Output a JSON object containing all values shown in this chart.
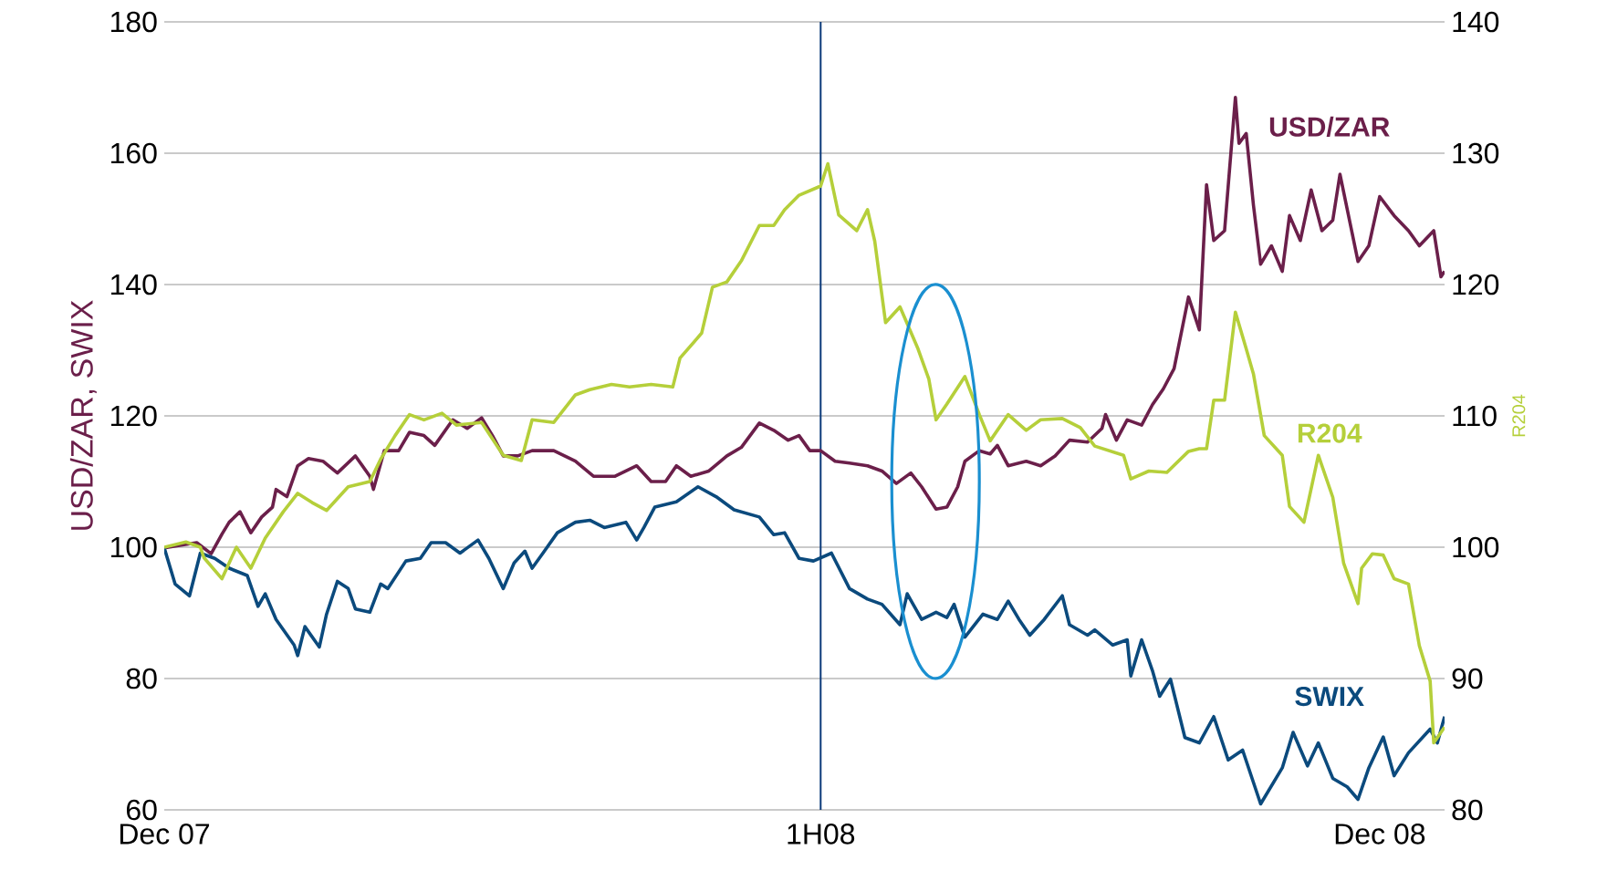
{
  "chart_data": {
    "type": "line",
    "ylabel": "USD/ZAR, SWIX",
    "y2label": "R204",
    "xlim": [
      "2007-12-31",
      "2008-12-20"
    ],
    "xticks": [
      {
        "value": "2007-12-31",
        "label": "Dec 07"
      },
      {
        "value": "2008-06-30",
        "label": "1H08"
      },
      {
        "value": "2008-12-02",
        "label": "Dec 08"
      }
    ],
    "ylim": [
      60,
      180
    ],
    "yticks": [
      60,
      80,
      100,
      120,
      140,
      160,
      180
    ],
    "y2lim": [
      80,
      140
    ],
    "y2ticks": [
      80,
      90,
      100,
      110,
      120,
      130,
      140
    ],
    "grid": "y",
    "ref_lines": [
      {
        "axis": "x",
        "value": "2008-06-30",
        "color": "#0b3a7a"
      }
    ],
    "series": [
      {
        "name": "USD/ZAR",
        "color": "#6b1f4a",
        "x": [
          "2007-12-31",
          "2008-01-09",
          "2008-01-13",
          "2008-01-16",
          "2008-01-18",
          "2008-01-21",
          "2008-01-24",
          "2008-01-27",
          "2008-01-30",
          "2008-01-31",
          "2008-02-03",
          "2008-02-06",
          "2008-02-09",
          "2008-02-13",
          "2008-02-17",
          "2008-02-22",
          "2008-02-26",
          "2008-02-27",
          "2008-03-01",
          "2008-03-05",
          "2008-03-08",
          "2008-03-12",
          "2008-03-15",
          "2008-03-20",
          "2008-03-24",
          "2008-03-28",
          "2008-03-31",
          "2008-04-03",
          "2008-04-07",
          "2008-04-11",
          "2008-04-17",
          "2008-04-23",
          "2008-04-28",
          "2008-05-04",
          "2008-05-10",
          "2008-05-14",
          "2008-05-18",
          "2008-05-21",
          "2008-05-25",
          "2008-05-30",
          "2008-06-04",
          "2008-06-08",
          "2008-06-13",
          "2008-06-17",
          "2008-06-21",
          "2008-06-24",
          "2008-06-27",
          "2008-06-30",
          "2008-07-04",
          "2008-07-08",
          "2008-07-13",
          "2008-07-17",
          "2008-07-21",
          "2008-07-25",
          "2008-07-28",
          "2008-08-01",
          "2008-08-04",
          "2008-08-07",
          "2008-08-09",
          "2008-08-13",
          "2008-08-16",
          "2008-08-18",
          "2008-08-21",
          "2008-08-26",
          "2008-08-30",
          "2008-09-03",
          "2008-09-07",
          "2008-09-12",
          "2008-09-16",
          "2008-09-17",
          "2008-09-20",
          "2008-09-23",
          "2008-09-27",
          "2008-09-30",
          "2008-10-03",
          "2008-10-06",
          "2008-10-10",
          "2008-10-13",
          "2008-10-15",
          "2008-10-17",
          "2008-10-20",
          "2008-10-23",
          "2008-10-24",
          "2008-10-26",
          "2008-10-28",
          "2008-10-30",
          "2008-11-02",
          "2008-11-05",
          "2008-11-07",
          "2008-11-10",
          "2008-11-13",
          "2008-11-16",
          "2008-11-19",
          "2008-11-21",
          "2008-11-26",
          "2008-11-29",
          "2008-12-02",
          "2008-12-06",
          "2008-12-10",
          "2008-12-13",
          "2008-12-17",
          "2008-12-19",
          "2008-12-20"
        ],
        "values": [
          99.9,
          100.7,
          99,
          102,
          103.8,
          105.4,
          102.2,
          104.6,
          106.1,
          108.8,
          107.7,
          112.4,
          113.5,
          113.1,
          111.3,
          113.9,
          110.8,
          108.8,
          114.7,
          114.7,
          117.5,
          117,
          115.5,
          119.4,
          118.1,
          119.7,
          117,
          113.9,
          113.9,
          114.7,
          114.7,
          113.1,
          110.8,
          110.8,
          112.4,
          110,
          110,
          112.4,
          110.8,
          111.6,
          113.9,
          115.2,
          118.9,
          117.8,
          116.3,
          117,
          114.7,
          114.7,
          113.1,
          112.8,
          112.4,
          111.6,
          109.7,
          111.3,
          109.2,
          105.8,
          106.1,
          109.2,
          113.1,
          114.7,
          114.2,
          115.5,
          112.4,
          113.1,
          112.4,
          113.9,
          116.3,
          116,
          118.1,
          120.2,
          116.3,
          119.4,
          118.6,
          121.7,
          124.1,
          127.2,
          138.1,
          133.1,
          155.2,
          146.7,
          148.2,
          168.5,
          161.5,
          163,
          152.1,
          143.1,
          145.9,
          142,
          150.5,
          146.7,
          154.4,
          148.2,
          149.8,
          156.8,
          143.5,
          145.9,
          153.4,
          150.5,
          148.2,
          145.9,
          148.2,
          141.2,
          142
        ]
      },
      {
        "name": "SWIX",
        "color": "#0b4a7d",
        "x": [
          "2007-12-31",
          "2008-01-03",
          "2008-01-07",
          "2008-01-10",
          "2008-01-14",
          "2008-01-18",
          "2008-01-23",
          "2008-01-26",
          "2008-01-28",
          "2008-01-31",
          "2008-02-05",
          "2008-02-06",
          "2008-02-08",
          "2008-02-12",
          "2008-02-14",
          "2008-02-17",
          "2008-02-20",
          "2008-02-22",
          "2008-02-26",
          "2008-02-29",
          "2008-03-02",
          "2008-03-07",
          "2008-03-11",
          "2008-03-14",
          "2008-03-18",
          "2008-03-22",
          "2008-03-27",
          "2008-03-30",
          "2008-04-03",
          "2008-04-06",
          "2008-04-09",
          "2008-04-11",
          "2008-04-14",
          "2008-04-18",
          "2008-04-23",
          "2008-04-27",
          "2008-05-01",
          "2008-05-07",
          "2008-05-10",
          "2008-05-12",
          "2008-05-15",
          "2008-05-21",
          "2008-05-27",
          "2008-06-01",
          "2008-06-06",
          "2008-06-13",
          "2008-06-17",
          "2008-06-20",
          "2008-06-24",
          "2008-06-28",
          "2008-07-03",
          "2008-07-08",
          "2008-07-13",
          "2008-07-17",
          "2008-07-22",
          "2008-07-24",
          "2008-07-28",
          "2008-08-01",
          "2008-08-04",
          "2008-08-06",
          "2008-08-09",
          "2008-08-14",
          "2008-08-18",
          "2008-08-21",
          "2008-08-24",
          "2008-08-27",
          "2008-08-31",
          "2008-09-05",
          "2008-09-07",
          "2008-09-12",
          "2008-09-14",
          "2008-09-19",
          "2008-09-23",
          "2008-09-24",
          "2008-09-27",
          "2008-09-30",
          "2008-10-02",
          "2008-10-05",
          "2008-10-09",
          "2008-10-13",
          "2008-10-17",
          "2008-10-21",
          "2008-10-25",
          "2008-10-30",
          "2008-11-05",
          "2008-11-08",
          "2008-11-12",
          "2008-11-15",
          "2008-11-19",
          "2008-11-23",
          "2008-11-26",
          "2008-11-29",
          "2008-12-03",
          "2008-12-06",
          "2008-12-10",
          "2008-12-16",
          "2008-12-18",
          "2008-12-20"
        ],
        "values": [
          99.9,
          94.4,
          92.6,
          99.1,
          98.3,
          96.8,
          95.7,
          91,
          92.9,
          89,
          85.1,
          83.5,
          87.9,
          84.8,
          89.8,
          94.8,
          93.7,
          90.6,
          90.1,
          94.4,
          93.7,
          97.9,
          98.3,
          100.7,
          100.7,
          99.1,
          101.1,
          98.3,
          93.7,
          97.6,
          99.4,
          96.8,
          99.1,
          102.2,
          103.8,
          104.1,
          103,
          103.8,
          101.1,
          103,
          106.1,
          106.9,
          109.2,
          107.7,
          105.7,
          104.6,
          101.9,
          102.2,
          98.3,
          97.9,
          99.1,
          93.7,
          92.1,
          91.3,
          88.2,
          92.9,
          89,
          90.1,
          89.3,
          91.3,
          86.3,
          89.8,
          89,
          91.8,
          89,
          86.6,
          89,
          92.6,
          88.2,
          86.6,
          87.4,
          85.1,
          85.9,
          80.4,
          85.9,
          81.2,
          77.3,
          79.9,
          71,
          70.2,
          74.2,
          67.6,
          69.1,
          60.9,
          66.4,
          71.8,
          66.7,
          70.2,
          64.8,
          63.5,
          61.6,
          66.4,
          71.1,
          65.2,
          68.7,
          72.3,
          70.2,
          74.2
        ]
      },
      {
        "name": "R204",
        "color": "#b5cf3a",
        "axis": "y2",
        "x": [
          "2007-12-31",
          "2008-01-06",
          "2008-01-10",
          "2008-01-11",
          "2008-01-16",
          "2008-01-20",
          "2008-01-24",
          "2008-01-28",
          "2008-02-02",
          "2008-02-06",
          "2008-02-10",
          "2008-02-14",
          "2008-02-20",
          "2008-02-26",
          "2008-02-29",
          "2008-03-04",
          "2008-03-08",
          "2008-03-12",
          "2008-03-17",
          "2008-03-21",
          "2008-03-28",
          "2008-04-03",
          "2008-04-08",
          "2008-04-11",
          "2008-04-17",
          "2008-04-23",
          "2008-04-27",
          "2008-05-03",
          "2008-05-08",
          "2008-05-14",
          "2008-05-20",
          "2008-05-22",
          "2008-05-28",
          "2008-05-31",
          "2008-06-04",
          "2008-06-08",
          "2008-06-13",
          "2008-06-17",
          "2008-06-20",
          "2008-06-24",
          "2008-06-30",
          "2008-07-02",
          "2008-07-05",
          "2008-07-10",
          "2008-07-13",
          "2008-07-15",
          "2008-07-18",
          "2008-07-22",
          "2008-07-27",
          "2008-07-30",
          "2008-08-01",
          "2008-08-04",
          "2008-08-09",
          "2008-08-13",
          "2008-08-16",
          "2008-08-21",
          "2008-08-26",
          "2008-08-30",
          "2008-09-05",
          "2008-09-10",
          "2008-09-14",
          "2008-09-22",
          "2008-09-24",
          "2008-09-29",
          "2008-10-04",
          "2008-10-10",
          "2008-10-13",
          "2008-10-15",
          "2008-10-17",
          "2008-10-20",
          "2008-10-23",
          "2008-10-26",
          "2008-10-28",
          "2008-10-31",
          "2008-11-05",
          "2008-11-07",
          "2008-11-11",
          "2008-11-15",
          "2008-11-19",
          "2008-11-22",
          "2008-11-26",
          "2008-11-27",
          "2008-11-30",
          "2008-12-03",
          "2008-12-06",
          "2008-12-10",
          "2008-12-13",
          "2008-12-16",
          "2008-12-17",
          "2008-12-20"
        ],
        "values": [
          100,
          100.4,
          100,
          99.2,
          97.6,
          100,
          98.4,
          100.7,
          102.7,
          104.1,
          103.4,
          102.8,
          104.6,
          105,
          106.7,
          108.5,
          110.1,
          109.7,
          110.2,
          109.3,
          109.5,
          107,
          106.6,
          109.7,
          109.5,
          111.6,
          112,
          112.4,
          112.2,
          112.4,
          112.2,
          114.4,
          116.3,
          119.8,
          120.2,
          121.8,
          124.5,
          124.5,
          125.7,
          126.8,
          127.5,
          129.2,
          125.3,
          124.1,
          125.7,
          123.3,
          117.1,
          118.3,
          115.1,
          112.8,
          109.7,
          110.9,
          113,
          110.1,
          108.1,
          110.1,
          108.9,
          109.7,
          109.8,
          109.1,
          107.7,
          107,
          105.2,
          105.8,
          105.7,
          107.3,
          107.5,
          107.5,
          111.2,
          111.2,
          117.9,
          115.1,
          113.2,
          108.5,
          107,
          103.1,
          101.9,
          107,
          103.8,
          98.8,
          95.7,
          98.4,
          99.5,
          99.4,
          97.6,
          97.2,
          92.5,
          89.8,
          85.1,
          86.3
        ]
      }
    ]
  }
}
